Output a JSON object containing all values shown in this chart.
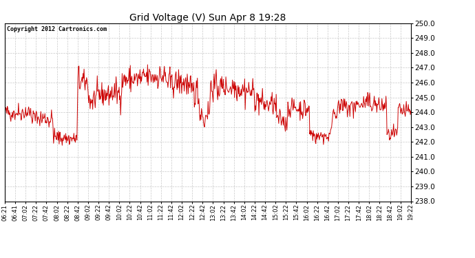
{
  "title": "Grid Voltage (V) Sun Apr 8 19:28",
  "copyright": "Copyright 2012 Cartronics.com",
  "line_color": "#cc0000",
  "bg_color": "#ffffff",
  "plot_bg_color": "#ffffff",
  "grid_color": "#c8c8c8",
  "grid_style": "--",
  "ylim": [
    238.0,
    250.0
  ],
  "yticks": [
    238.0,
    239.0,
    240.0,
    241.0,
    242.0,
    243.0,
    244.0,
    245.0,
    246.0,
    247.0,
    248.0,
    249.0,
    250.0
  ],
  "xtick_labels": [
    "06:21",
    "06:41",
    "07:02",
    "07:22",
    "07:42",
    "08:02",
    "08:22",
    "08:42",
    "09:02",
    "09:22",
    "09:42",
    "10:02",
    "10:22",
    "10:42",
    "11:02",
    "11:22",
    "11:42",
    "12:02",
    "12:22",
    "12:42",
    "13:02",
    "13:22",
    "13:42",
    "14:02",
    "14:22",
    "14:42",
    "15:02",
    "15:22",
    "15:42",
    "16:02",
    "16:22",
    "16:42",
    "17:02",
    "17:22",
    "17:42",
    "18:02",
    "18:22",
    "18:42",
    "19:02",
    "19:22"
  ],
  "seed": 42,
  "n_points": 800
}
